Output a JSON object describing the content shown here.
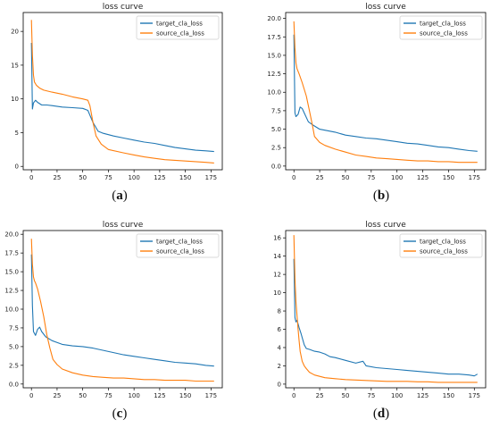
{
  "chart_data": [
    {
      "type": "line",
      "panel_label": "a",
      "title": "loss curve",
      "x_ticks": [
        0,
        25,
        50,
        75,
        100,
        125,
        150,
        175
      ],
      "y_ticks": [
        0,
        5,
        10,
        15,
        20
      ],
      "y_tick_labels": [
        "0",
        "5",
        "10",
        "15",
        "20"
      ],
      "xlim": [
        -8,
        186
      ],
      "ylim": [
        -0.5,
        22.8
      ],
      "legend": "top-right",
      "grid": false,
      "series": [
        {
          "name": "target_cla_loss",
          "color": "#1f77b4",
          "x": [
            0,
            1,
            2,
            4,
            6,
            10,
            15,
            20,
            30,
            40,
            50,
            55,
            60,
            65,
            70,
            80,
            90,
            100,
            110,
            120,
            130,
            140,
            150,
            160,
            170,
            178
          ],
          "y": [
            18.3,
            8.5,
            9.4,
            9.8,
            9.5,
            9.1,
            9.1,
            9.0,
            8.8,
            8.7,
            8.6,
            8.3,
            6.5,
            5.2,
            4.9,
            4.5,
            4.2,
            3.9,
            3.6,
            3.4,
            3.1,
            2.8,
            2.6,
            2.4,
            2.3,
            2.2
          ]
        },
        {
          "name": "source_cla_loss",
          "color": "#ff7f0e",
          "x": [
            0,
            1,
            2,
            3,
            5,
            8,
            12,
            20,
            30,
            40,
            50,
            55,
            57,
            60,
            63,
            68,
            75,
            90,
            100,
            110,
            120,
            130,
            140,
            150,
            160,
            170,
            178
          ],
          "y": [
            21.7,
            16.5,
            13.5,
            12.5,
            12.0,
            11.6,
            11.3,
            11.0,
            10.7,
            10.3,
            10.0,
            9.8,
            9.0,
            6.5,
            4.5,
            3.3,
            2.5,
            2.0,
            1.7,
            1.4,
            1.2,
            1.0,
            0.9,
            0.8,
            0.7,
            0.6,
            0.5
          ]
        }
      ]
    },
    {
      "type": "line",
      "panel_label": "b",
      "title": "loss curve",
      "x_ticks": [
        0,
        25,
        50,
        75,
        100,
        125,
        150,
        175
      ],
      "y_ticks": [
        0,
        2.5,
        5,
        7.5,
        10,
        12.5,
        15,
        17.5,
        20
      ],
      "y_tick_labels": [
        "0.0",
        "2.5",
        "5.0",
        "7.5",
        "10.0",
        "12.5",
        "15.0",
        "17.5",
        "20.0"
      ],
      "xlim": [
        -8,
        186
      ],
      "ylim": [
        -0.5,
        20.8
      ],
      "legend": "top-right",
      "grid": false,
      "series": [
        {
          "name": "target_cla_loss",
          "color": "#1f77b4",
          "x": [
            0,
            1,
            2,
            4,
            6,
            8,
            10,
            14,
            18,
            25,
            40,
            50,
            60,
            70,
            80,
            90,
            100,
            110,
            120,
            130,
            140,
            150,
            160,
            170,
            178
          ],
          "y": [
            17.8,
            7.2,
            6.7,
            7.0,
            8.0,
            7.8,
            7.2,
            6.0,
            5.6,
            5.0,
            4.6,
            4.2,
            4.0,
            3.8,
            3.7,
            3.5,
            3.3,
            3.1,
            3.0,
            2.8,
            2.6,
            2.5,
            2.3,
            2.1,
            2.0
          ]
        },
        {
          "name": "source_cla_loss",
          "color": "#ff7f0e",
          "x": [
            0,
            1,
            2,
            3,
            5,
            8,
            12,
            15,
            18,
            20,
            25,
            30,
            40,
            50,
            60,
            70,
            80,
            90,
            100,
            110,
            120,
            130,
            140,
            150,
            160,
            170,
            178
          ],
          "y": [
            19.6,
            16.0,
            14.0,
            13.2,
            12.5,
            11.3,
            9.5,
            7.5,
            5.5,
            4.0,
            3.2,
            2.8,
            2.3,
            1.9,
            1.5,
            1.3,
            1.1,
            1.0,
            0.9,
            0.8,
            0.7,
            0.7,
            0.6,
            0.6,
            0.5,
            0.5,
            0.5
          ]
        }
      ]
    },
    {
      "type": "line",
      "panel_label": "c",
      "title": "loss curve",
      "x_ticks": [
        0,
        25,
        50,
        75,
        100,
        125,
        150,
        175
      ],
      "y_ticks": [
        0,
        2.5,
        5,
        7.5,
        10,
        12.5,
        15,
        17.5,
        20
      ],
      "y_tick_labels": [
        "0.0",
        "2.5",
        "5.0",
        "7.5",
        "10.0",
        "12.5",
        "15.0",
        "17.5",
        "20.0"
      ],
      "xlim": [
        -8,
        186
      ],
      "ylim": [
        -0.5,
        20.5
      ],
      "legend": "top-right",
      "grid": false,
      "series": [
        {
          "name": "target_cla_loss",
          "color": "#1f77b4",
          "x": [
            0,
            1,
            2,
            4,
            6,
            8,
            10,
            14,
            20,
            30,
            40,
            50,
            60,
            70,
            80,
            90,
            100,
            110,
            120,
            130,
            140,
            150,
            160,
            170,
            178
          ],
          "y": [
            17.3,
            10.5,
            7.0,
            6.5,
            7.3,
            7.6,
            7.0,
            6.3,
            5.8,
            5.3,
            5.1,
            5.0,
            4.8,
            4.5,
            4.2,
            3.9,
            3.7,
            3.5,
            3.3,
            3.1,
            2.9,
            2.8,
            2.7,
            2.5,
            2.4
          ]
        },
        {
          "name": "source_cla_loss",
          "color": "#ff7f0e",
          "x": [
            0,
            1,
            2,
            3,
            4,
            6,
            9,
            12,
            15,
            18,
            21,
            25,
            30,
            40,
            50,
            60,
            70,
            80,
            90,
            100,
            110,
            120,
            130,
            140,
            150,
            160,
            170,
            178
          ],
          "y": [
            19.4,
            16.0,
            14.3,
            13.8,
            13.5,
            12.7,
            11.0,
            9.0,
            6.6,
            4.8,
            3.3,
            2.6,
            2.0,
            1.5,
            1.2,
            1.0,
            0.9,
            0.8,
            0.8,
            0.7,
            0.6,
            0.6,
            0.5,
            0.5,
            0.5,
            0.4,
            0.4,
            0.4
          ]
        }
      ]
    },
    {
      "type": "line",
      "panel_label": "d",
      "title": "loss curve",
      "x_ticks": [
        0,
        25,
        50,
        75,
        100,
        125,
        150,
        175
      ],
      "y_ticks": [
        0,
        2,
        4,
        6,
        8,
        10,
        12,
        14,
        16
      ],
      "y_tick_labels": [
        "0",
        "2",
        "4",
        "6",
        "8",
        "10",
        "12",
        "14",
        "16"
      ],
      "xlim": [
        -8,
        186
      ],
      "ylim": [
        -0.4,
        16.8
      ],
      "legend": "top-right",
      "grid": false,
      "series": [
        {
          "name": "target_cla_loss",
          "color": "#1f77b4",
          "x": [
            0,
            1,
            2,
            3,
            5,
            7,
            10,
            12,
            15,
            20,
            25,
            30,
            35,
            40,
            50,
            60,
            67,
            70,
            80,
            90,
            100,
            110,
            120,
            130,
            140,
            150,
            160,
            170,
            175,
            178
          ],
          "y": [
            13.7,
            7.3,
            6.8,
            7.0,
            6.2,
            5.5,
            4.3,
            3.9,
            3.8,
            3.6,
            3.5,
            3.3,
            3.0,
            2.9,
            2.6,
            2.3,
            2.5,
            2.0,
            1.8,
            1.7,
            1.6,
            1.5,
            1.4,
            1.3,
            1.2,
            1.1,
            1.1,
            1.0,
            0.9,
            1.1
          ]
        },
        {
          "name": "source_cla_loss",
          "color": "#ff7f0e",
          "x": [
            0,
            1,
            2,
            3,
            4,
            5,
            6,
            8,
            10,
            12,
            15,
            20,
            30,
            40,
            50,
            60,
            70,
            80,
            90,
            100,
            110,
            120,
            130,
            140,
            150,
            160,
            170,
            178
          ],
          "y": [
            16.3,
            11.5,
            9.0,
            7.5,
            6.0,
            4.8,
            3.6,
            2.5,
            2.0,
            1.7,
            1.3,
            1.0,
            0.7,
            0.6,
            0.5,
            0.45,
            0.4,
            0.35,
            0.3,
            0.3,
            0.3,
            0.25,
            0.25,
            0.2,
            0.2,
            0.2,
            0.2,
            0.2
          ]
        }
      ]
    }
  ]
}
